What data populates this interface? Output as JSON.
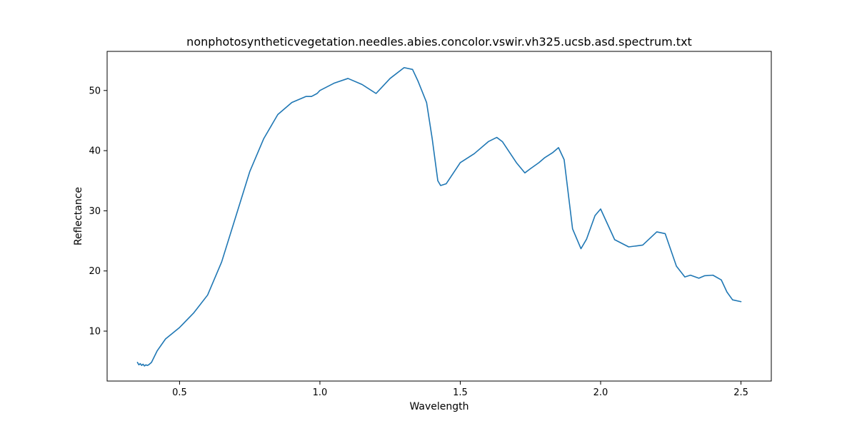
{
  "chart_data": {
    "type": "line",
    "title": "nonphotosyntheticvegetation.needles.abies.concolor.vswir.vh325.ucsb.asd.spectrum.txt",
    "xlabel": "Wavelength",
    "ylabel": "Reflectance",
    "xlim": [
      0.242,
      2.608
    ],
    "ylim": [
      1.7,
      56.5
    ],
    "xticks": [
      0.5,
      1.0,
      1.5,
      2.0,
      2.5
    ],
    "xtick_labels": [
      "0.5",
      "1.0",
      "1.5",
      "2.0",
      "2.5"
    ],
    "yticks": [
      10,
      20,
      30,
      40,
      50
    ],
    "ytick_labels": [
      "10",
      "20",
      "30",
      "40",
      "50"
    ],
    "grid": false,
    "line_color": "#1f77b4",
    "series": [
      {
        "x": [
          0.35,
          0.355,
          0.36,
          0.365,
          0.37,
          0.375,
          0.38,
          0.385,
          0.39,
          0.4,
          0.42,
          0.45,
          0.5,
          0.55,
          0.6,
          0.65,
          0.7,
          0.75,
          0.8,
          0.85,
          0.9,
          0.95,
          0.97,
          0.99,
          1.0,
          1.05,
          1.1,
          1.15,
          1.2,
          1.25,
          1.3,
          1.33,
          1.35,
          1.38,
          1.4,
          1.42,
          1.43,
          1.45,
          1.5,
          1.55,
          1.6,
          1.63,
          1.65,
          1.7,
          1.73,
          1.75,
          1.78,
          1.8,
          1.83,
          1.85,
          1.87,
          1.9,
          1.93,
          1.95,
          1.98,
          2.0,
          2.05,
          2.1,
          2.15,
          2.2,
          2.23,
          2.27,
          2.3,
          2.32,
          2.35,
          2.37,
          2.4,
          2.43,
          2.45,
          2.47,
          2.5
        ],
        "y": [
          4.8,
          4.4,
          4.6,
          4.3,
          4.5,
          4.2,
          4.4,
          4.3,
          4.4,
          4.8,
          6.7,
          8.7,
          10.6,
          13.0,
          16.0,
          21.5,
          29.0,
          36.5,
          42.0,
          46.0,
          48.0,
          49.0,
          49.0,
          49.5,
          50.0,
          51.2,
          52.0,
          51.0,
          49.5,
          52.0,
          53.8,
          53.5,
          51.5,
          48.0,
          42.0,
          35.0,
          34.2,
          34.5,
          38.0,
          39.5,
          41.5,
          42.2,
          41.5,
          38.0,
          36.3,
          37.0,
          38.0,
          38.8,
          39.7,
          40.5,
          38.5,
          27.0,
          23.7,
          25.3,
          29.2,
          30.3,
          25.2,
          24.0,
          24.3,
          26.5,
          26.2,
          20.8,
          19.0,
          19.3,
          18.8,
          19.2,
          19.3,
          18.5,
          16.5,
          15.2,
          14.9
        ]
      }
    ]
  }
}
